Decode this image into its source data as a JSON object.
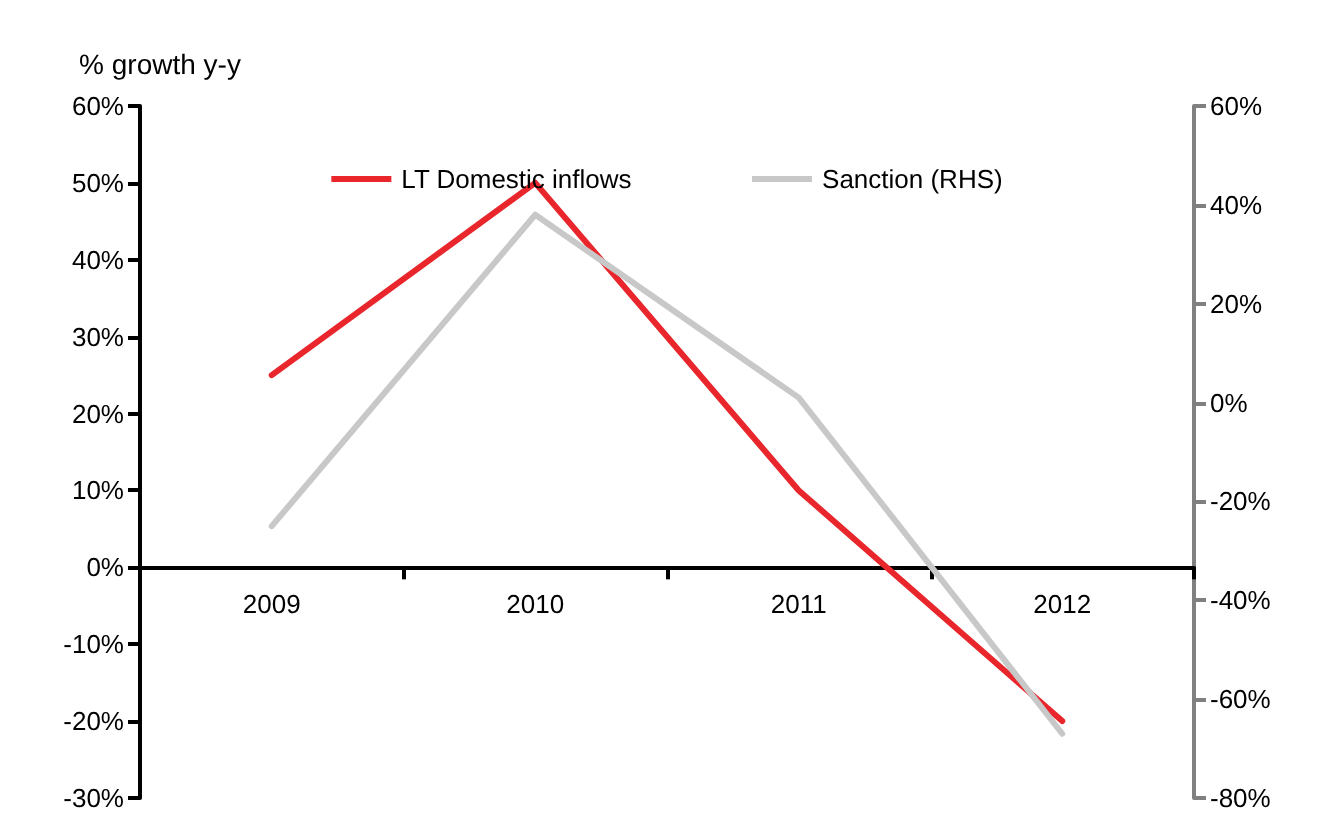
{
  "chart_data": {
    "type": "line",
    "ylabel": "% growth y-y",
    "categories": [
      "2009",
      "2010",
      "2011",
      "2012"
    ],
    "series": [
      {
        "name": "LT Domestic inflows",
        "color": "#e8262b",
        "values": [
          25,
          50,
          10,
          -20
        ]
      },
      {
        "name": "Sanction (RHS)",
        "color": "#c8c8c8",
        "values": [
          -25,
          38,
          1,
          -67
        ],
        "axis": "y2"
      }
    ],
    "ylim": [
      -30,
      60
    ],
    "yticks": [
      {
        "value": -30,
        "label": "-30%"
      },
      {
        "value": -20,
        "label": "-20%"
      },
      {
        "value": -10,
        "label": "-10%"
      },
      {
        "value": 0,
        "label": "0%"
      },
      {
        "value": 10,
        "label": "10%"
      },
      {
        "value": 20,
        "label": "20%"
      },
      {
        "value": 30,
        "label": "30%"
      },
      {
        "value": 40,
        "label": "40%"
      },
      {
        "value": 50,
        "label": "50%"
      },
      {
        "value": 60,
        "label": "60%"
      }
    ],
    "y2lim": [
      -80,
      60
    ],
    "y2ticks": [
      {
        "value": -80,
        "label": "-80%"
      },
      {
        "value": -60,
        "label": "-60%"
      },
      {
        "value": -40,
        "label": "-40%"
      },
      {
        "value": -20,
        "label": "-20%"
      },
      {
        "value": 0,
        "label": "0%"
      },
      {
        "value": 20,
        "label": "20%"
      },
      {
        "value": 40,
        "label": "40%"
      },
      {
        "value": 60,
        "label": "60%"
      }
    ],
    "grid": false,
    "legend": "top",
    "marker": "none",
    "line_style": "solid"
  }
}
